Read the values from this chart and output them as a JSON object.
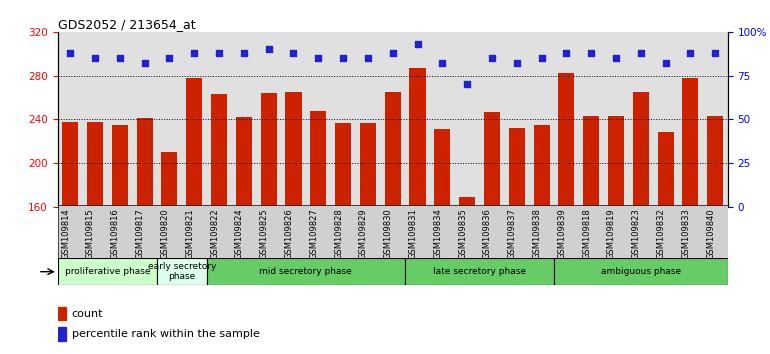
{
  "title": "GDS2052 / 213654_at",
  "samples": [
    "GSM109814",
    "GSM109815",
    "GSM109816",
    "GSM109817",
    "GSM109820",
    "GSM109821",
    "GSM109822",
    "GSM109824",
    "GSM109825",
    "GSM109826",
    "GSM109827",
    "GSM109828",
    "GSM109829",
    "GSM109830",
    "GSM109831",
    "GSM109834",
    "GSM109835",
    "GSM109836",
    "GSM109837",
    "GSM109838",
    "GSM109839",
    "GSM109818",
    "GSM109819",
    "GSM109823",
    "GSM109832",
    "GSM109833",
    "GSM109840"
  ],
  "counts": [
    238,
    238,
    235,
    241,
    210,
    278,
    263,
    242,
    264,
    265,
    248,
    237,
    237,
    265,
    287,
    231,
    169,
    247,
    232,
    235,
    282,
    243,
    243,
    265,
    229,
    278,
    243
  ],
  "percentile_ranks": [
    88,
    85,
    85,
    82,
    85,
    88,
    88,
    88,
    90,
    88,
    85,
    85,
    85,
    88,
    93,
    82,
    70,
    85,
    82,
    85,
    88,
    88,
    85,
    88,
    82,
    88,
    88
  ],
  "phase_data": [
    {
      "label": "proliferative phase",
      "start": 0,
      "end": 4,
      "color": "#ccffcc"
    },
    {
      "label": "early secretory\nphase",
      "start": 4,
      "end": 6,
      "color": "#ddffee"
    },
    {
      "label": "mid secretory phase",
      "start": 6,
      "end": 14,
      "color": "#66cc66"
    },
    {
      "label": "late secretory phase",
      "start": 14,
      "end": 20,
      "color": "#66cc66"
    },
    {
      "label": "ambiguous phase",
      "start": 20,
      "end": 27,
      "color": "#66cc66"
    }
  ],
  "ylim_left": [
    160,
    320
  ],
  "yticks_left": [
    160,
    200,
    240,
    280,
    320
  ],
  "yticks_right": [
    0,
    25,
    50,
    75,
    100
  ],
  "bar_color": "#cc2200",
  "dot_color": "#2222cc",
  "background_color": "#e0e0e0",
  "grid_values": [
    200,
    240,
    280
  ],
  "bar_bottom": 160
}
